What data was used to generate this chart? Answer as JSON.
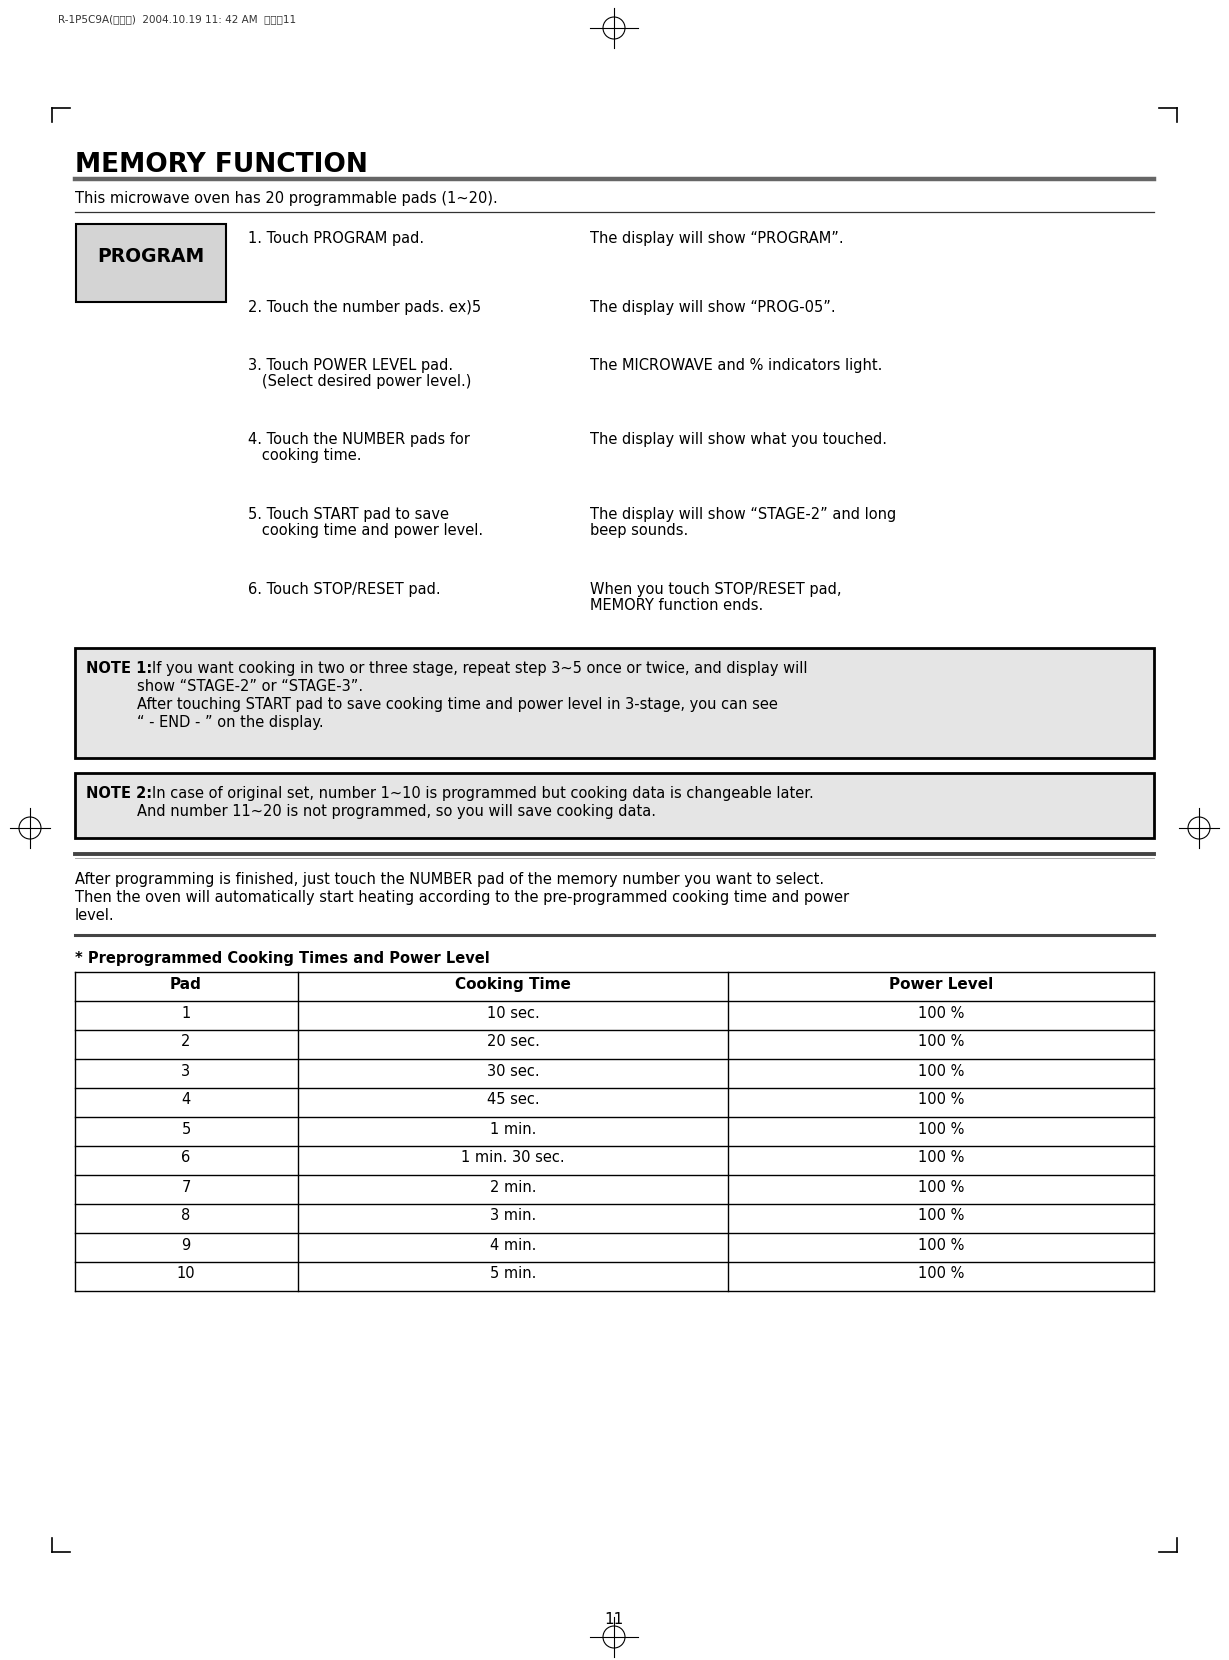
{
  "page_header": "R-1P5C9A(영기분)  2004.10.19 11: 42 AM  페이직11",
  "title": "MEMORY FUNCTION",
  "subtitle": "This microwave oven has 20 programmable pads (1~20).",
  "program_label": "PROGRAM",
  "steps": [
    {
      "left1": "1. Touch PROGRAM pad.",
      "left2": "",
      "right1": "The display will show “PROGRAM”.",
      "right2": ""
    },
    {
      "left1": "2. Touch the number pads. ex)5",
      "left2": "",
      "right1": "The display will show “PROG-05”.",
      "right2": ""
    },
    {
      "left1": "3. Touch POWER LEVEL pad.",
      "left2": "   (Select desired power level.)",
      "right1": "The MICROWAVE and % indicators light.",
      "right2": ""
    },
    {
      "left1": "4. Touch the NUMBER pads for",
      "left2": "   cooking time.",
      "right1": "The display will show what you touched.",
      "right2": ""
    },
    {
      "left1": "5. Touch START pad to save",
      "left2": "   cooking time and power level.",
      "right1": "The display will show “STAGE-2” and long",
      "right2": "beep sounds."
    },
    {
      "left1": "6. Touch STOP/RESET pad.",
      "left2": "",
      "right1": "When you touch STOP/RESET pad,",
      "right2": "MEMORY function ends."
    }
  ],
  "note1_bold": "NOTE 1:",
  "note1_lines": [
    "If you want cooking in two or three stage, repeat step 3~5 once or twice, and display will",
    "        show “STAGE-2” or “STAGE-3”.",
    "        After touching START pad to save cooking time and power level in 3-stage, you can see",
    "        “ - END - ” on the display."
  ],
  "note2_bold": "NOTE 2:",
  "note2_lines": [
    "In case of original set, number 1~10 is programmed but cooking data is changeable later.",
    "        And number 11~20 is not programmed, so you will save cooking data."
  ],
  "after_lines": [
    "After programming is finished, just touch the NUMBER pad of the memory number you want to select.",
    "Then the oven will automatically start heating according to the pre-programmed cooking time and power",
    "level."
  ],
  "table_title": "* Preprogrammed Cooking Times and Power Level",
  "table_headers": [
    "Pad",
    "Cooking Time",
    "Power Level"
  ],
  "table_data": [
    [
      "1",
      "10 sec.",
      "100 %"
    ],
    [
      "2",
      "20 sec.",
      "100 %"
    ],
    [
      "3",
      "30 sec.",
      "100 %"
    ],
    [
      "4",
      "45 sec.",
      "100 %"
    ],
    [
      "5",
      "1 min.",
      "100 %"
    ],
    [
      "6",
      "1 min. 30 sec.",
      "100 %"
    ],
    [
      "7",
      "2 min.",
      "100 %"
    ],
    [
      "8",
      "3 min.",
      "100 %"
    ],
    [
      "9",
      "4 min.",
      "100 %"
    ],
    [
      "10",
      "5 min.",
      "100 %"
    ]
  ],
  "page_number": "11",
  "bg_color": "#ffffff",
  "note_bg": "#e5e5e5",
  "header_line_color": "#666666"
}
